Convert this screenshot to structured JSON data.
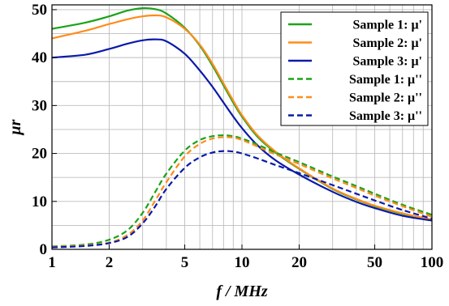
{
  "chart_data": {
    "type": "line",
    "xlabel": "f / MHz",
    "ylabel": "μr",
    "xscale": "log",
    "xlim": [
      1,
      100
    ],
    "ylim": [
      0,
      51
    ],
    "xticks": [
      1,
      2,
      5,
      10,
      20,
      50,
      100
    ],
    "yticks": [
      0,
      10,
      20,
      30,
      40,
      50
    ],
    "grid": true,
    "legend_position": "top-right",
    "x": [
      1,
      1.5,
      2,
      2.5,
      3,
      3.5,
      4,
      5,
      6,
      7,
      8,
      9,
      10,
      12,
      15,
      20,
      30,
      40,
      50,
      70,
      100
    ],
    "series": [
      {
        "name": "Sample 1: μ'",
        "color": "#1aa31a",
        "dash": "solid",
        "values": [
          46,
          47.3,
          48.6,
          49.8,
          50.3,
          50.1,
          49.2,
          46.2,
          42.5,
          38.3,
          34.2,
          30.6,
          27.7,
          23.6,
          20.2,
          16.8,
          12.6,
          10.4,
          9.0,
          7.4,
          6.2
        ]
      },
      {
        "name": "Sample 2: μ'",
        "color": "#ff8c1a",
        "dash": "solid",
        "values": [
          44,
          45.6,
          47.0,
          48.0,
          48.6,
          48.8,
          48.4,
          46.0,
          42.7,
          38.7,
          34.6,
          31.0,
          28.0,
          23.9,
          20.4,
          16.9,
          12.7,
          10.5,
          9.1,
          7.5,
          6.2
        ]
      },
      {
        "name": "Sample 3: μ'",
        "color": "#0a1aa8",
        "dash": "solid",
        "values": [
          40,
          40.6,
          41.8,
          42.9,
          43.6,
          43.8,
          43.4,
          40.8,
          37.3,
          33.9,
          30.6,
          27.7,
          25.3,
          21.8,
          18.6,
          15.6,
          12.0,
          9.9,
          8.6,
          7.0,
          6.0
        ]
      },
      {
        "name": "Sample 1: μ''",
        "color": "#1aa31a",
        "dash": "dashed",
        "values": [
          0.6,
          1.0,
          2.0,
          4.0,
          7.6,
          12.0,
          15.8,
          20.6,
          22.8,
          23.6,
          23.8,
          23.6,
          23.1,
          21.9,
          20.2,
          18.2,
          15.2,
          13.2,
          11.6,
          9.3,
          7.2
        ]
      },
      {
        "name": "Sample 2: μ''",
        "color": "#ff8c1a",
        "dash": "dashed",
        "values": [
          0.5,
          0.8,
          1.4,
          3.0,
          6.0,
          10.2,
          14.0,
          19.4,
          22.0,
          23.1,
          23.4,
          23.3,
          22.8,
          21.5,
          19.8,
          17.8,
          14.8,
          12.8,
          11.2,
          9.0,
          6.8
        ]
      },
      {
        "name": "Sample 3: μ''",
        "color": "#0a1aa8",
        "dash": "dashed",
        "values": [
          0.4,
          0.7,
          1.3,
          2.6,
          5.4,
          9.0,
          12.6,
          17.0,
          19.2,
          20.2,
          20.5,
          20.4,
          20.0,
          19.0,
          17.6,
          15.9,
          13.4,
          11.6,
          10.2,
          8.2,
          6.4
        ]
      }
    ]
  }
}
